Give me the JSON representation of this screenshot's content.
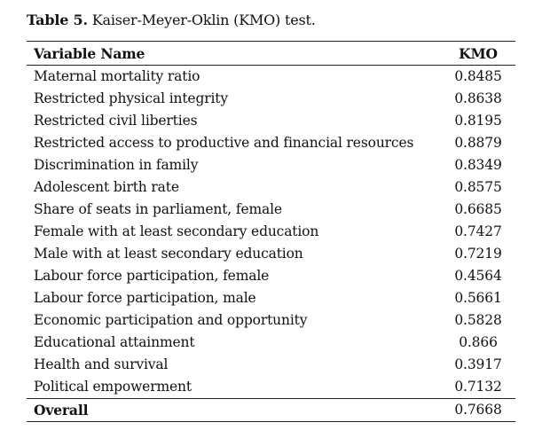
{
  "caption": {
    "label": "Table 5.",
    "text": " Kaiser-Meyer-Oklin (KMO) test."
  },
  "table": {
    "headers": [
      "Variable Name",
      "KMO"
    ],
    "rows": [
      [
        "Maternal mortality ratio",
        "0.8485"
      ],
      [
        "Restricted physical integrity",
        "0.8638"
      ],
      [
        "Restricted civil liberties",
        "0.8195"
      ],
      [
        "Restricted access to productive and financial resources",
        "0.8879"
      ],
      [
        "Discrimination in family",
        "0.8349"
      ],
      [
        "Adolescent birth rate",
        "0.8575"
      ],
      [
        "Share of seats in parliament, female",
        "0.6685"
      ],
      [
        "Female with at least secondary education",
        "0.7427"
      ],
      [
        "Male with at least secondary education",
        "0.7219"
      ],
      [
        "Labour force participation, female",
        "0.4564"
      ],
      [
        "Labour force participation, male",
        "0.5661"
      ],
      [
        "Economic participation and opportunity",
        "0.5828"
      ],
      [
        "Educational attainment",
        "0.866"
      ],
      [
        "Health and survival",
        "0.3917"
      ],
      [
        "Political empowerment",
        "0.7132"
      ]
    ],
    "total": [
      "Overall",
      "0.7668"
    ]
  }
}
